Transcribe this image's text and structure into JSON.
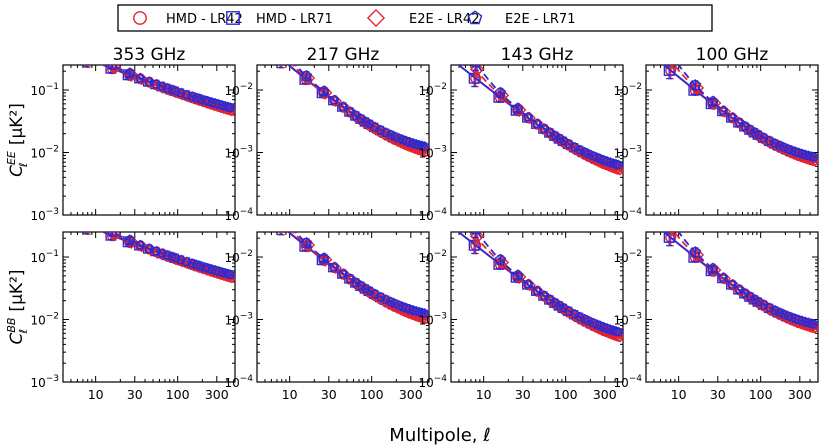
{
  "chart_data": {
    "type": "scatter",
    "description_free": true,
    "legend": [
      {
        "label": "HMD - LR42",
        "marker": "circle",
        "color": "#e8232b"
      },
      {
        "label": "HMD - LR71",
        "marker": "square",
        "color": "#2b2bd6"
      },
      {
        "label": "E2E - LR42",
        "marker": "diamond",
        "color": "#e8232b"
      },
      {
        "label": "E2E - LR71",
        "marker": "pentagon",
        "color": "#2b2bd6"
      }
    ],
    "xlabel": "Multipole, ℓ",
    "x_scale": "log",
    "xlim": [
      4,
      500
    ],
    "x_ticks": [
      10,
      30,
      100,
      300
    ],
    "x_tick_labels": [
      "10",
      "30",
      "100",
      "300"
    ],
    "rows": [
      {
        "ylabel_base": "C",
        "ylabel_sup": "EE",
        "ylabel_sub": "ℓ",
        "ylabel_unit": "[μK²]"
      },
      {
        "ylabel_base": "C",
        "ylabel_sup": "BB",
        "ylabel_sub": "ℓ",
        "ylabel_unit": "[μK²]"
      }
    ],
    "columns": [
      {
        "title": "353 GHz",
        "ylim_exp": [
          -3,
          -0.6
        ],
        "y_ticks_exp": [
          -3,
          -2,
          -1
        ],
        "model": {
          "A": 0.3,
          "alpha": 0.55,
          "N": 0.0135
        },
        "lr71_factor": 1.35,
        "e2e_steep": 0.6
      },
      {
        "title": "217 GHz",
        "ylim_exp": [
          -4,
          -1.6
        ],
        "y_ticks_exp": [
          -4,
          -3,
          -2
        ],
        "model": {
          "A": 0.03,
          "alpha": 1.1,
          "N": 0.00065
        },
        "lr71_factor": 1.3,
        "e2e_steep": 0.55
      },
      {
        "title": "143 GHz",
        "ylim_exp": [
          -4,
          -1.6
        ],
        "y_ticks_exp": [
          -4,
          -3,
          -2
        ],
        "model": {
          "A": 0.015,
          "alpha": 1.05,
          "N": 0.0003
        },
        "lr71_factor": 1.3,
        "e2e_steep": 0.8
      },
      {
        "title": "100 GHz",
        "ylim_exp": [
          -4,
          -1.6
        ],
        "y_ticks_exp": [
          -4,
          -3,
          -2
        ],
        "model": {
          "A": 0.02,
          "alpha": 1.1,
          "N": 0.00048
        },
        "lr71_factor": 1.2,
        "e2e_steep": 0.9
      }
    ],
    "ell_points": [
      8,
      16,
      26,
      35,
      45,
      55,
      65,
      75,
      85,
      95,
      110,
      130,
      150,
      170,
      190,
      215,
      240,
      265,
      290,
      320,
      350,
      380,
      410,
      440
    ]
  }
}
